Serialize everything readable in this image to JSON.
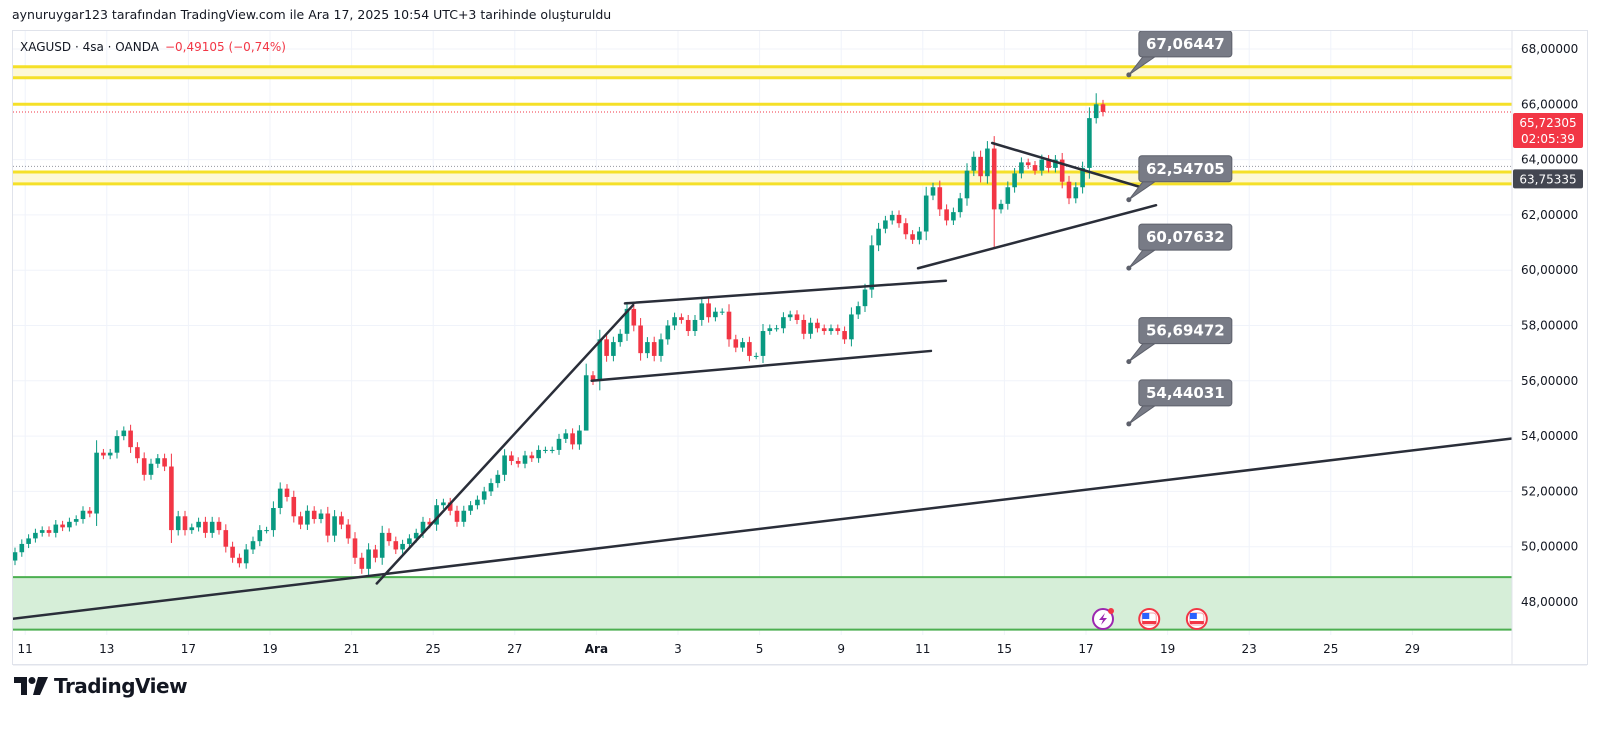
{
  "caption": "aynuruygar123 tarafından TradingView.com ile Ara 17, 2025 10:54 UTC+3 tarihinde oluşturuldu",
  "legend": {
    "symbol": "XAGUSD · 4sa · OANDA",
    "change": "−0,49105 (−0,74%)"
  },
  "logo": {
    "text": "TradingView"
  },
  "colors": {
    "up": "#089981",
    "down": "#f23645",
    "yellow": "#f5e028",
    "zone": "#d6eed8",
    "zone_line": "#4caf50",
    "callout": "#787b86"
  },
  "chart_data": {
    "type": "candlestick",
    "symbol": "XAGUSD",
    "interval": "4sa",
    "ylim": [
      47.0,
      68.4
    ],
    "y_ticks": [
      "68,00000",
      "66,00000",
      "64,00000",
      "62,00000",
      "60,00000",
      "58,00000",
      "56,00000",
      "54,00000",
      "52,00000",
      "50,00000",
      "48,00000"
    ],
    "y_tick_values": [
      68,
      66,
      64,
      62,
      60,
      58,
      56,
      54,
      52,
      50,
      48
    ],
    "x_ticks": [
      {
        "label": "11",
        "bar": 1.5
      },
      {
        "label": "13",
        "bar": 13.5
      },
      {
        "label": "17",
        "bar": 25.5
      },
      {
        "label": "19",
        "bar": 37.5
      },
      {
        "label": "21",
        "bar": 49.5
      },
      {
        "label": "25",
        "bar": 61.5
      },
      {
        "label": "27",
        "bar": 73.5
      },
      {
        "label": "Ara",
        "bar": 85.5,
        "bold": true
      },
      {
        "label": "3",
        "bar": 97.5
      },
      {
        "label": "5",
        "bar": 109.5
      },
      {
        "label": "9",
        "bar": 121.5
      },
      {
        "label": "11",
        "bar": 133.5
      },
      {
        "label": "15",
        "bar": 145.5
      },
      {
        "label": "17",
        "bar": 157.5
      },
      {
        "label": "19",
        "bar": 169.5
      },
      {
        "label": "23",
        "bar": 181.5
      },
      {
        "label": "25",
        "bar": 193.5
      },
      {
        "label": "29",
        "bar": 205.5
      }
    ],
    "first_open": 49.5,
    "closes": [
      49.8,
      50.1,
      50.3,
      50.5,
      50.6,
      50.5,
      50.8,
      50.7,
      50.9,
      51.0,
      51.3,
      51.2,
      53.4,
      53.3,
      53.4,
      54.0,
      54.2,
      53.6,
      53.2,
      52.6,
      53.0,
      53.2,
      52.9,
      50.6,
      51.1,
      50.6,
      50.7,
      50.9,
      50.5,
      50.9,
      50.6,
      50.0,
      49.6,
      49.4,
      49.9,
      50.2,
      50.6,
      50.6,
      51.4,
      52.1,
      51.8,
      51.1,
      50.8,
      51.3,
      51.0,
      51.2,
      50.4,
      51.1,
      50.8,
      50.3,
      49.6,
      49.2,
      49.9,
      49.6,
      50.5,
      50.2,
      49.9,
      50.1,
      50.3,
      50.5,
      50.9,
      50.8,
      51.5,
      51.6,
      51.3,
      50.9,
      51.3,
      51.5,
      51.7,
      52.0,
      52.3,
      52.6,
      53.3,
      53.1,
      53.0,
      53.3,
      53.2,
      53.5,
      53.5,
      53.5,
      53.9,
      54.1,
      53.7,
      54.2,
      56.2,
      56.0,
      57.5,
      56.9,
      57.4,
      57.7,
      58.6,
      58.0,
      57.0,
      57.4,
      56.9,
      57.5,
      58.0,
      58.3,
      58.2,
      57.8,
      58.2,
      58.8,
      58.3,
      58.5,
      58.5,
      57.5,
      57.2,
      57.4,
      56.9,
      56.9,
      57.8,
      57.9,
      57.9,
      58.3,
      58.4,
      58.2,
      57.7,
      58.1,
      57.9,
      57.8,
      57.9,
      57.8,
      57.5,
      58.4,
      58.7,
      59.3,
      60.9,
      61.5,
      61.8,
      62.0,
      61.7,
      61.3,
      61.1,
      61.4,
      62.7,
      63.0,
      62.2,
      61.8,
      62.1,
      62.6,
      63.6,
      64.1,
      63.4,
      64.4,
      62.2,
      62.4,
      63.0,
      63.5,
      63.9,
      63.8,
      63.6,
      64.0,
      63.7,
      64.0,
      63.2,
      62.6,
      63.0,
      63.7,
      65.5,
      66.0,
      65.72305
    ],
    "wick_overrides": {
      "16": {
        "high": 54.35
      },
      "144": {
        "low": 60.8
      },
      "159": {
        "high": 66.4
      },
      "84": {
        "low": 55.9
      },
      "126": {
        "low": 59.0
      }
    },
    "last_price": {
      "value": "65,72305",
      "countdown": "02:05:39",
      "price": 65.72305
    },
    "prev_price_label": {
      "value": "63,75335",
      "price": 63.75335
    },
    "horizontal_lines": [
      67.36,
      66.96,
      66.0,
      63.55,
      63.12
    ],
    "yellow_bands": [
      [
        66.96,
        67.36
      ],
      [
        63.12,
        63.55
      ]
    ],
    "support_zone": [
      47.0,
      48.9
    ],
    "trendlines": [
      {
        "name": "long-trendline",
        "from": [
          -0.5,
          47.39
        ],
        "to": [
          220,
          53.91
        ]
      },
      {
        "name": "steep-trendline",
        "from": [
          53.2,
          48.67
        ],
        "to": [
          90.9,
          58.74
        ]
      },
      {
        "name": "channel-top",
        "from": [
          89.7,
          58.8
        ],
        "to": [
          136.9,
          59.62
        ]
      },
      {
        "name": "channel-bottom",
        "from": [
          84.8,
          56.0
        ],
        "to": [
          134.7,
          57.08
        ]
      },
      {
        "name": "triangle-upper",
        "from": [
          143.7,
          64.6
        ],
        "to": [
          165.6,
          63.0
        ]
      },
      {
        "name": "triangle-lower",
        "from": [
          132.8,
          60.07
        ],
        "to": [
          167.8,
          62.35
        ]
      }
    ],
    "callouts": [
      {
        "label": "67,06447",
        "price": 67.06447,
        "bar": 163.8
      },
      {
        "label": "62,54705",
        "price": 62.54705,
        "bar": 163.8
      },
      {
        "label": "60,07632",
        "price": 60.07632,
        "bar": 163.8
      },
      {
        "label": "56,69472",
        "price": 56.69472,
        "bar": 163.8
      },
      {
        "label": "54,44031",
        "price": 54.44031,
        "bar": 163.8
      }
    ],
    "events": [
      {
        "icon": "lightning-icon",
        "bar": 160
      },
      {
        "icon": "us-flag-icon",
        "bar": 166.8
      },
      {
        "icon": "us-flag-icon",
        "bar": 173.8
      }
    ]
  }
}
